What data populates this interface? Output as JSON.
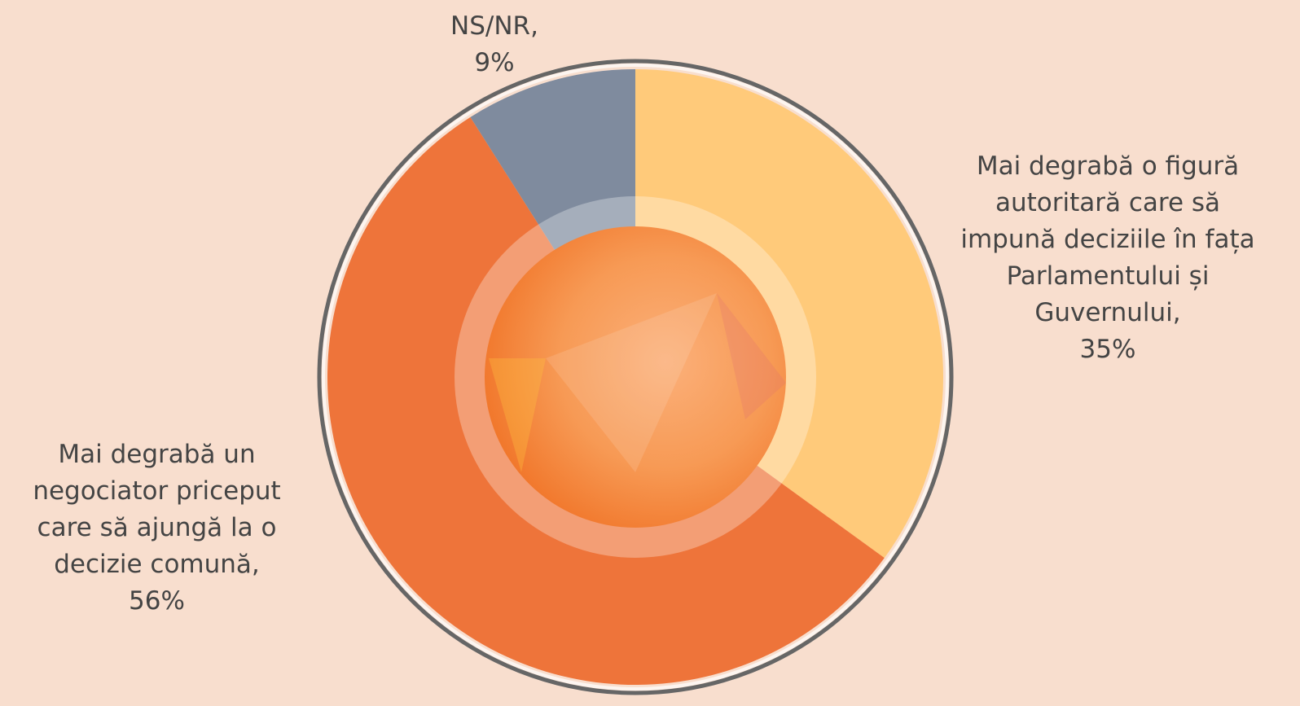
{
  "chart_data": {
    "type": "donut",
    "categories": [
      "Mai degrabă o figură autoritară care să impună deciziile în fața Parlamentului și Guvernului,",
      "Mai degrabă un negociator priceput care să ajungă la o decizie comună,",
      "NS/NR,"
    ],
    "values": [
      35,
      56,
      9
    ],
    "value_labels": [
      "35%",
      "56%",
      "9%"
    ],
    "colors": [
      "#FFCA7A",
      "#EE743A",
      "#7F8B9E"
    ]
  }
}
